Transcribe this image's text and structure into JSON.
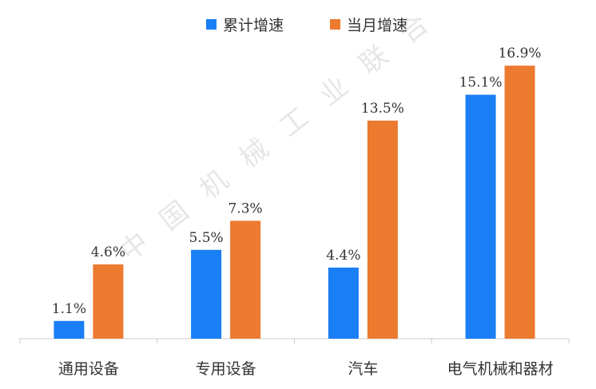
{
  "watermark": "中国机械工业联合",
  "colors": {
    "series_1": "#1a7ef5",
    "series_2": "#ec7a2f",
    "axis": "#cccccc"
  },
  "chart_data": {
    "type": "bar",
    "categories": [
      "通用设备",
      "专用设备",
      "汽车",
      "电气机械和器材"
    ],
    "series": [
      {
        "name": "累计增速",
        "values": [
          1.1,
          5.5,
          4.4,
          15.1
        ],
        "labels": [
          "1.1%",
          "5.5%",
          "4.4%",
          "15.1%"
        ]
      },
      {
        "name": "当月增速",
        "values": [
          4.6,
          7.3,
          13.5,
          16.9
        ],
        "labels": [
          "4.6%",
          "7.3%",
          "13.5%",
          "16.9%"
        ]
      }
    ],
    "legend_position": "top-center",
    "grid": false,
    "ylim": [
      0,
      18
    ]
  }
}
